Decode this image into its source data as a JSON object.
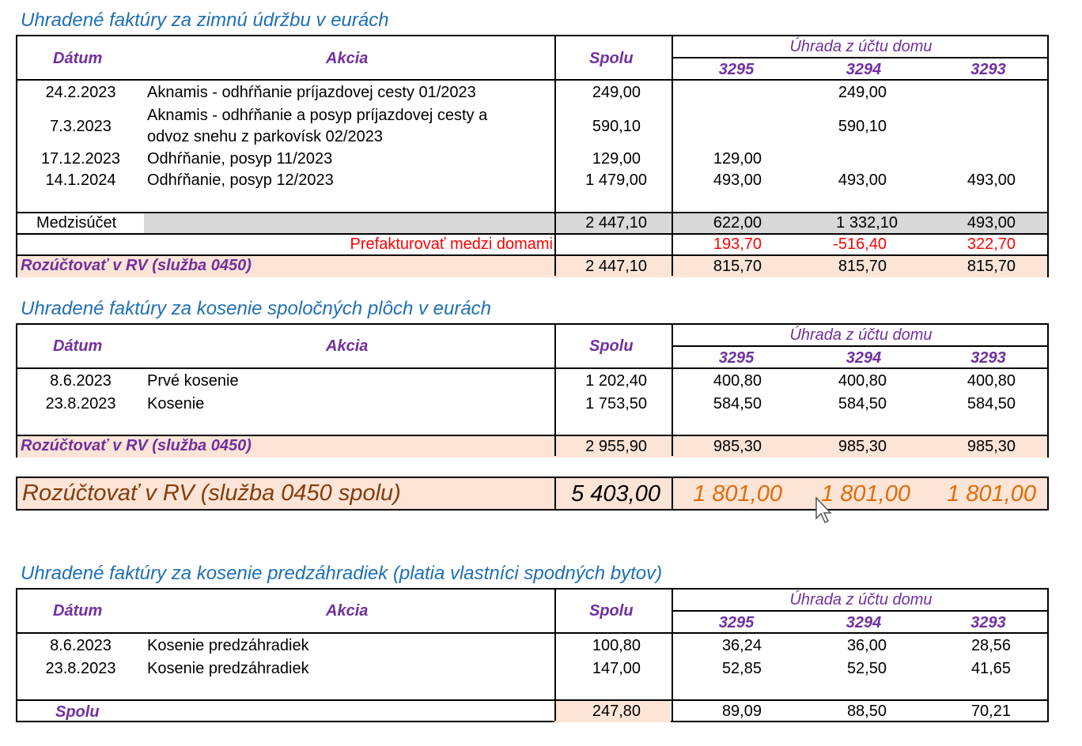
{
  "headers": {
    "datum": "Dátum",
    "akcia": "Akcia",
    "spolu": "Spolu",
    "uhrada": "Úhrada z účtu domu",
    "c3295": "3295",
    "c3294": "3294",
    "c3293": "3293"
  },
  "section1": {
    "title": "Uhradené faktúry za zimnú údržbu v eurách",
    "rows": [
      {
        "datum": "24.2.2023",
        "akcia": [
          "Aknamis - odhŕňanie príjazdovej cesty 01/2023"
        ],
        "spolu": "249,00",
        "v3295": "",
        "v3294": "249,00",
        "v3293": ""
      },
      {
        "datum": "7.3.2023",
        "akcia": [
          "Aknamis - odhŕňanie a posyp príjazdovej cesty a",
          "odvoz snehu z parkovísk  02/2023"
        ],
        "spolu": "590,10",
        "v3295": "",
        "v3294": "590,10",
        "v3293": ""
      },
      {
        "datum": "17.12.2023",
        "akcia": [
          "Odhŕňanie, posyp 11/2023"
        ],
        "spolu": "129,00",
        "v3295": "129,00",
        "v3294": "",
        "v3293": ""
      },
      {
        "datum": "14.1.2024",
        "akcia": [
          "Odhŕňanie, posyp 12/2023"
        ],
        "spolu": "1 479,00",
        "v3295": "493,00",
        "v3294": "493,00",
        "v3293": "493,00"
      }
    ],
    "medzisucet": {
      "label": "Medzisúčet",
      "spolu": "2 447,10",
      "v3295": "622,00",
      "v3294": "1 332,10",
      "v3293": "493,00"
    },
    "prefakturovat": {
      "label": "Prefakturovať medzi domami",
      "v3295": "193,70",
      "v3294": "-516,40",
      "v3293": "322,70"
    },
    "rozuctovat": {
      "label": "Rozúčtovať v RV (služba 0450)",
      "spolu": "2 447,10",
      "v3295": "815,70",
      "v3294": "815,70",
      "v3293": "815,70"
    }
  },
  "section2": {
    "title": "Uhradené faktúry za kosenie spoločných plôch v eurách",
    "rows": [
      {
        "datum": "8.6.2023",
        "akcia": "Prvé kosenie",
        "spolu": "1 202,40",
        "v3295": "400,80",
        "v3294": "400,80",
        "v3293": "400,80"
      },
      {
        "datum": "23.8.2023",
        "akcia": "Kosenie",
        "spolu": "1 753,50",
        "v3295": "584,50",
        "v3294": "584,50",
        "v3293": "584,50"
      }
    ],
    "rozuctovat": {
      "label": "Rozúčtovať v RV (služba 0450)",
      "spolu": "2 955,90",
      "v3295": "985,30",
      "v3294": "985,30",
      "v3293": "985,30"
    }
  },
  "total": {
    "label": "Rozúčtovať v RV (služba 0450 spolu)",
    "spolu": "5 403,00",
    "v3295": "1 801,00",
    "v3294": "1 801,00",
    "v3293": "1 801,00"
  },
  "section3": {
    "title": "Uhradené faktúry za kosenie predzáhradiek (platia vlastníci spodných bytov)",
    "rows": [
      {
        "datum": "8.6.2023",
        "akcia": "Kosenie predzáhradiek",
        "spolu": "100,80",
        "v3295": "36,24",
        "v3294": "36,00",
        "v3293": "28,56"
      },
      {
        "datum": "23.8.2023",
        "akcia": "Kosenie predzáhradiek",
        "spolu": "147,00",
        "v3295": "52,85",
        "v3294": "52,50",
        "v3293": "41,65"
      }
    ],
    "spolu_row": {
      "label": "Spolu",
      "spolu": "247,80",
      "v3295": "89,09",
      "v3294": "88,50",
      "v3293": "70,21"
    }
  },
  "colors": {
    "title_blue": "#1f6fb5",
    "header_purple": "#7030a0",
    "subtotal_gray": "#d9d9d9",
    "summary_peach": "#fce4d6",
    "red": "#ff0000",
    "total_label_brown": "#843c0c",
    "total_orange": "#e26b0a"
  },
  "icons": {
    "cursor": "mouse-pointer-icon"
  }
}
